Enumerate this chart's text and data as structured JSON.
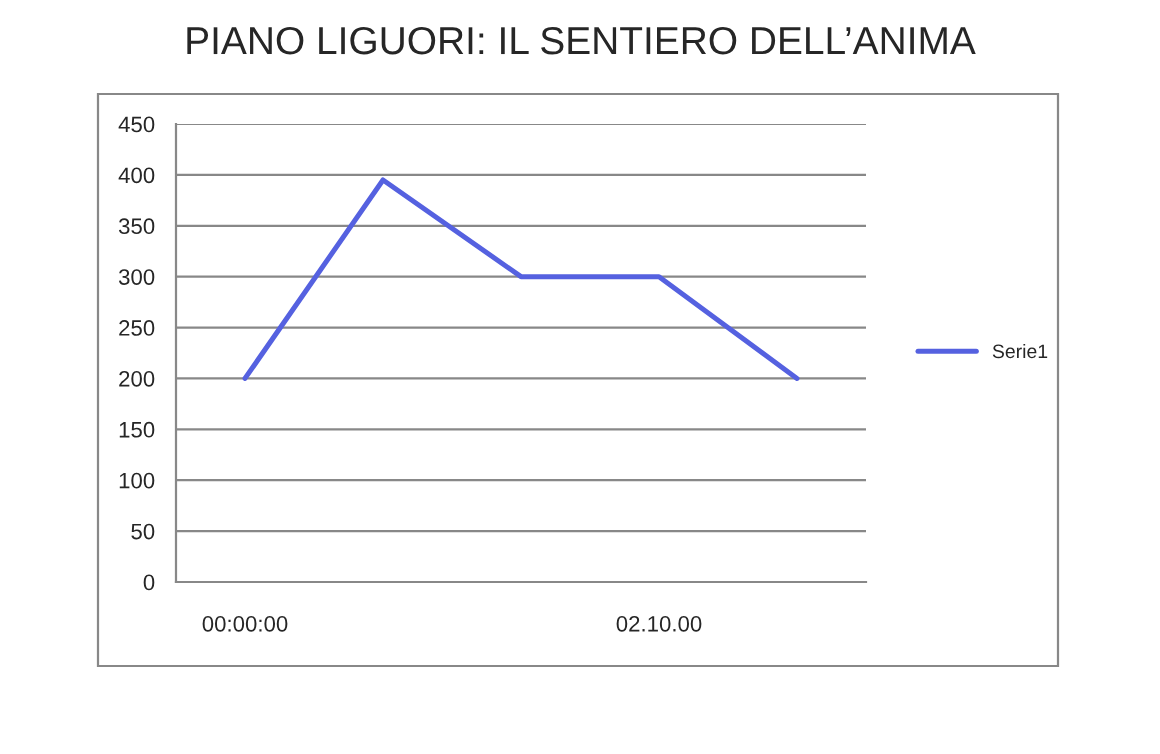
{
  "chart_data": {
    "type": "line",
    "title": "PIANO LIGUORI: IL SENTIERO DELL’ANIMA",
    "categories": [
      "00:00:00",
      null,
      null,
      "02.10.00",
      null
    ],
    "series": [
      {
        "name": "Serie1",
        "color": "#5561e0",
        "values": [
          200,
          395,
          300,
          300,
          200
        ]
      }
    ],
    "ylim": [
      0,
      450
    ],
    "yticks": [
      0,
      50,
      100,
      150,
      200,
      250,
      300,
      350,
      400,
      450
    ],
    "grid": "y",
    "legend": "right",
    "marker": "none",
    "line_style": "solid"
  }
}
